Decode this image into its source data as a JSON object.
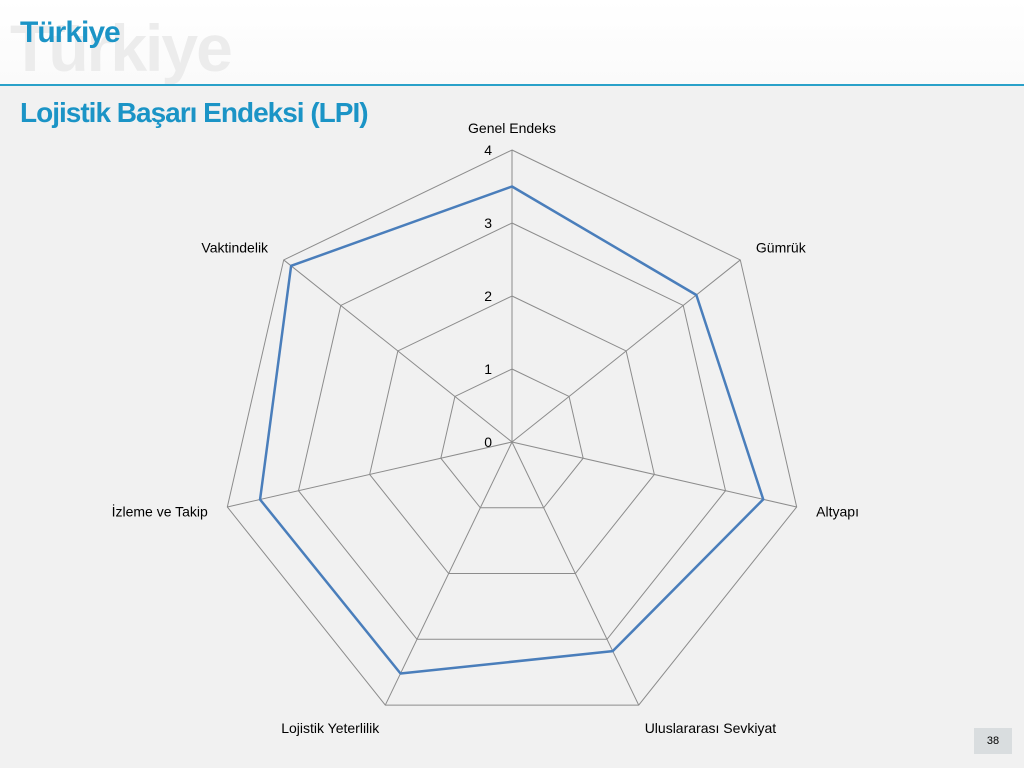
{
  "slide": {
    "header_title": "Türkiye",
    "watermark_text": "Türkiye",
    "subtitle": "Lojistik Başarı Endeksi (LPI)",
    "page_number": "38",
    "accent_color": "#1b94c6",
    "line_color": "#2aa1c9"
  },
  "chart_data": {
    "type": "radar",
    "title": "",
    "categories": [
      "Genel Endeks",
      "Gümrük",
      "Altyapı",
      "Uluslararası Sevkiyat",
      "Lojistik Yeterlilik",
      "İzleme ve Takip",
      "Vaktindelik"
    ],
    "series": [
      {
        "values": [
          3.5,
          3.23,
          3.53,
          3.18,
          3.52,
          3.54,
          3.87
        ],
        "color": "#4a7ebb"
      }
    ],
    "axis_range": [
      0,
      4
    ],
    "ticks": [
      0,
      1,
      2,
      3,
      4
    ],
    "grid": true,
    "legend": "none"
  }
}
